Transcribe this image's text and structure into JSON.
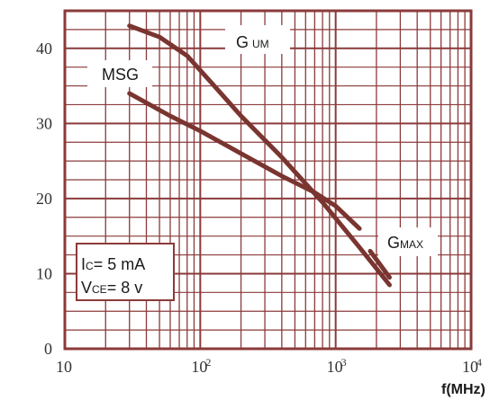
{
  "chart_data": {
    "type": "line",
    "xscale": "log",
    "xlim": [
      10,
      10000
    ],
    "ylim": [
      0,
      45
    ],
    "xlabel": "f(MHz)",
    "x_ticks": [
      {
        "value": 10,
        "base": "10",
        "exp": ""
      },
      {
        "value": 100,
        "base": "10",
        "exp": "2"
      },
      {
        "value": 1000,
        "base": "10",
        "exp": "3"
      },
      {
        "value": 10000,
        "base": "10",
        "exp": "4"
      }
    ],
    "y_ticks": [
      0,
      10,
      20,
      30,
      40
    ],
    "grid": true,
    "colors": {
      "grid": "#8b3a3a",
      "curve": "#7a3530",
      "text": "#333333"
    },
    "series": [
      {
        "name": "G UM",
        "label_main": "G",
        "label_sub": "UM",
        "x": [
          30,
          50,
          80,
          120,
          200,
          400,
          800,
          1500,
          2500
        ],
        "y": [
          43.0,
          41.5,
          39.0,
          35.5,
          31.0,
          25.5,
          19.5,
          13.5,
          8.5
        ]
      },
      {
        "name": "MSG",
        "label_main": "MSG",
        "label_sub": "",
        "x": [
          30,
          60,
          100,
          200,
          400,
          700,
          1000,
          1500
        ],
        "y": [
          34.0,
          31.0,
          29.0,
          26.0,
          23.0,
          20.8,
          19.0,
          16.0
        ]
      },
      {
        "name": "GMAX",
        "label_main": "G",
        "label_sub": "MAX",
        "x": [
          1800,
          2500
        ],
        "y": [
          13.0,
          9.5
        ]
      }
    ],
    "annotation": {
      "line1_main": "I",
      "line1_sub": "C",
      "line1_rest": "= 5  mA",
      "line2_main": "V",
      "line2_sub": "CE",
      "line2_rest": "= 8 v"
    }
  }
}
